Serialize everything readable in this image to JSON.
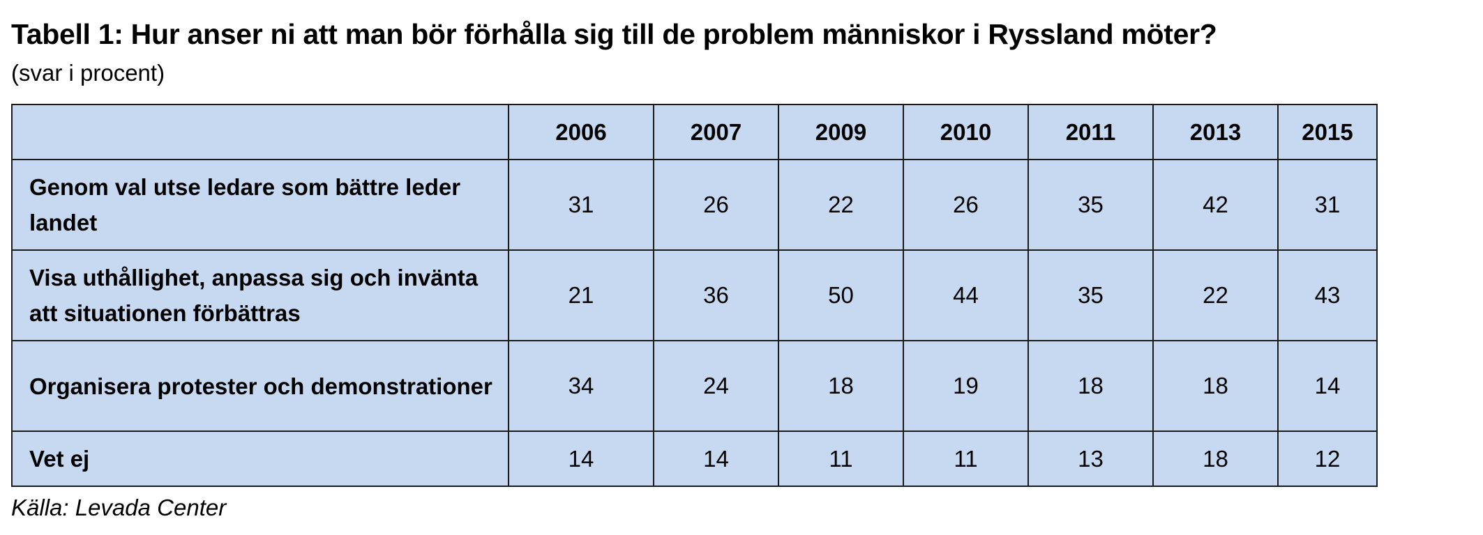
{
  "title": "Tabell 1: Hur anser ni att man bör förhålla sig till de problem människor i Ryssland möter?",
  "subtitle": "(svar i procent)",
  "source": "Källa: Levada Center",
  "chart_data": {
    "type": "table",
    "columns": [
      "",
      "2006",
      "2007",
      "2009",
      "2010",
      "2011",
      "2013",
      "2015"
    ],
    "rows": [
      {
        "label": "Genom val utse ledare som bättre leder landet",
        "values": [
          "31",
          "26",
          "22",
          "26",
          "35",
          "42",
          "31"
        ]
      },
      {
        "label": "Visa uthållighet, anpassa sig och invänta att situationen förbättras",
        "values": [
          "21",
          "36",
          "50",
          "44",
          "35",
          "22",
          "43"
        ]
      },
      {
        "label": "Organisera protester och demonstrationer",
        "values": [
          "34",
          "24",
          "18",
          "19",
          "18",
          "18",
          "14"
        ]
      },
      {
        "label": "Vet ej",
        "values": [
          "14",
          "14",
          "11",
          "11",
          "13",
          "18",
          "12"
        ]
      }
    ]
  }
}
